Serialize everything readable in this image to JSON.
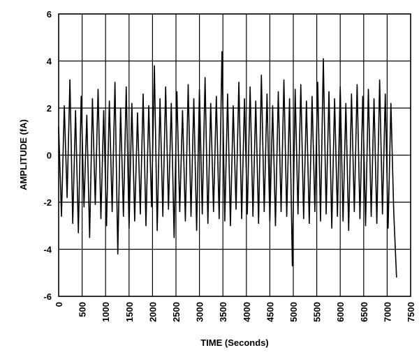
{
  "chart_data": {
    "type": "line",
    "xlabel": "TIME (Seconds)",
    "ylabel": "AMPLITUDE (fA)",
    "xlim": [
      0,
      7500
    ],
    "xticks": [
      0,
      500,
      1000,
      1500,
      2000,
      2500,
      3000,
      3500,
      4000,
      4500,
      5000,
      5500,
      6000,
      6500,
      7000,
      7500
    ],
    "ylim": [
      -6,
      6
    ],
    "yticks": [
      -6,
      -4,
      -2,
      0,
      2,
      4,
      6
    ],
    "grid": true,
    "x": [
      0,
      60,
      120,
      180,
      240,
      300,
      360,
      420,
      480,
      540,
      600,
      660,
      720,
      780,
      840,
      900,
      960,
      1020,
      1080,
      1140,
      1200,
      1260,
      1320,
      1380,
      1440,
      1500,
      1560,
      1620,
      1680,
      1740,
      1800,
      1860,
      1920,
      1980,
      2040,
      2100,
      2160,
      2220,
      2280,
      2340,
      2400,
      2460,
      2520,
      2580,
      2640,
      2700,
      2760,
      2820,
      2880,
      2940,
      3000,
      3060,
      3120,
      3180,
      3240,
      3300,
      3360,
      3420,
      3480,
      3540,
      3600,
      3660,
      3720,
      3780,
      3840,
      3900,
      3960,
      4020,
      4080,
      4140,
      4200,
      4260,
      4320,
      4380,
      4440,
      4500,
      4560,
      4620,
      4680,
      4740,
      4800,
      4860,
      4920,
      4980,
      5040,
      5100,
      5160,
      5220,
      5280,
      5340,
      5400,
      5460,
      5520,
      5580,
      5640,
      5700,
      5760,
      5820,
      5880,
      5940,
      6000,
      6060,
      6120,
      6180,
      6240,
      6300,
      6360,
      6420,
      6480,
      6540,
      6600,
      6660,
      6720,
      6780,
      6840,
      6900,
      6960,
      7020,
      7080,
      7140,
      7200
    ],
    "series": [
      {
        "color": "#000000",
        "values": [
          1.2,
          -2.6,
          2.1,
          -1.8,
          3.2,
          -2.9,
          1.9,
          -3.3,
          2.5,
          -2.2,
          1.7,
          -3.5,
          2.4,
          -2.1,
          2.8,
          -2.7,
          1.9,
          -3.0,
          2.3,
          -2.4,
          3.1,
          -4.2,
          2.0,
          -2.6,
          2.9,
          -3.1,
          2.2,
          -2.8,
          1.8,
          -2.5,
          2.6,
          -3.0,
          2.1,
          -2.2,
          3.8,
          -3.2,
          2.4,
          -2.6,
          2.9,
          -2.3,
          2.2,
          -3.5,
          2.7,
          -2.4,
          1.9,
          -2.8,
          3.0,
          -2.6,
          2.4,
          -3.2,
          2.8,
          -2.5,
          3.3,
          -2.9,
          2.2,
          -2.4,
          2.5,
          -2.7,
          4.4,
          -2.8,
          2.6,
          -3.0,
          2.1,
          -2.3,
          3.1,
          -2.7,
          2.4,
          -2.5,
          2.9,
          -2.6,
          2.3,
          -2.9,
          3.4,
          -2.4,
          2.6,
          -2.8,
          2.1,
          -3.0,
          2.7,
          -2.4,
          3.2,
          -2.6,
          2.4,
          -4.7,
          2.8,
          -2.5,
          3.0,
          -2.7,
          2.3,
          -2.9,
          2.5,
          -2.4,
          3.1,
          -2.8,
          4.1,
          -2.5,
          2.7,
          -3.1,
          2.4,
          -2.6,
          2.9,
          -2.8,
          2.2,
          -3.2,
          2.6,
          -2.4,
          3.0,
          -2.7,
          2.5,
          -3.0,
          2.8,
          -2.6,
          2.4,
          -2.9,
          3.2,
          -2.5,
          2.6,
          -3.1,
          2.2,
          -2.4,
          -5.2
        ]
      }
    ]
  }
}
